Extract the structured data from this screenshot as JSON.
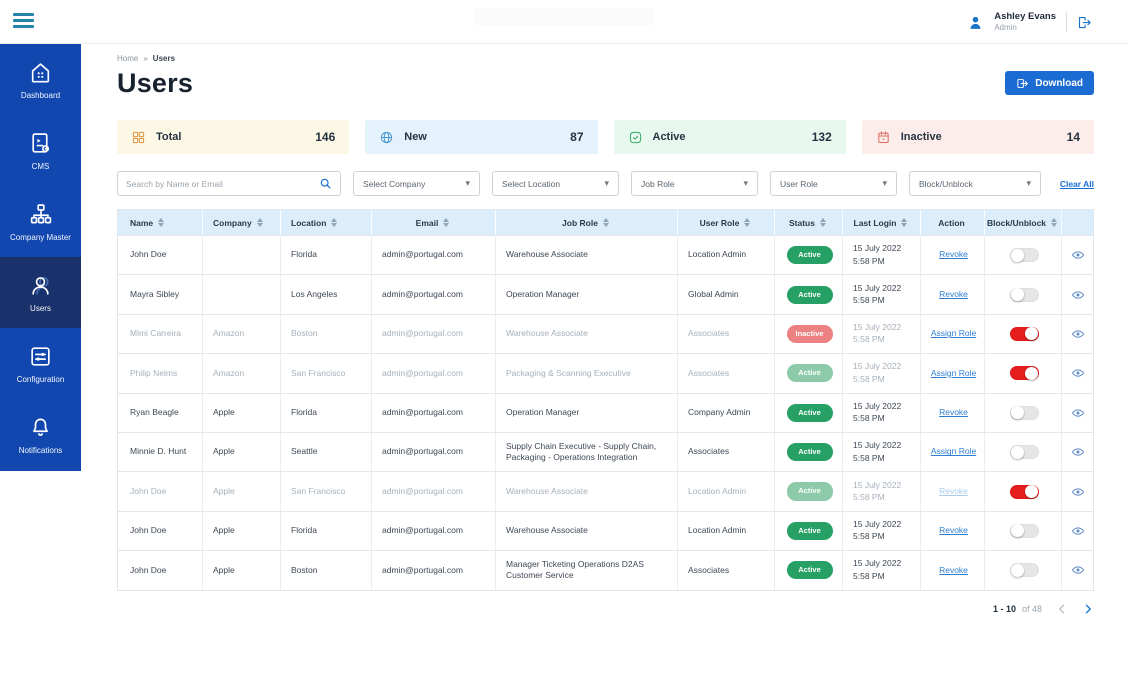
{
  "topbar": {
    "user_name": "Ashley Evans",
    "user_role": "Admin"
  },
  "sidebar": {
    "items": [
      {
        "id": "dashboard",
        "label": "Dashboard",
        "icon": "home-icon",
        "active": false
      },
      {
        "id": "cms",
        "label": "CMS",
        "icon": "cms-icon",
        "active": false
      },
      {
        "id": "company-master",
        "label": "Company Master",
        "icon": "org-chart-icon",
        "active": false
      },
      {
        "id": "users",
        "label": "Users",
        "icon": "user-icon",
        "active": true
      },
      {
        "id": "configuration",
        "label": "Configuration",
        "icon": "sliders-icon",
        "active": false
      },
      {
        "id": "notifications",
        "label": "Notifications",
        "icon": "bell-icon",
        "active": false
      }
    ]
  },
  "breadcrumb": {
    "items": [
      "Home",
      "Users"
    ],
    "separator": "»"
  },
  "page": {
    "title": "Users"
  },
  "toolbar": {
    "download_label": "Download"
  },
  "stats": {
    "cards": [
      {
        "label": "Total",
        "value": "146",
        "icon": "grid-icon",
        "bg": "#fcf8e5",
        "icon_color": "#d9913f"
      },
      {
        "label": "New",
        "value": "87",
        "icon": "globe-icon",
        "bg": "#e4f3fb",
        "icon_color": "#4a97d2"
      },
      {
        "label": "Active",
        "value": "132",
        "icon": "check-square-icon",
        "bg": "#e7f8ee",
        "icon_color": "#35a865"
      },
      {
        "label": "Inactive",
        "value": "14",
        "icon": "calendar-icon",
        "bg": "#fdedea",
        "icon_color": "#d96b60"
      }
    ]
  },
  "filters": {
    "search_placeholder": "Search by Name or Email",
    "selects": [
      {
        "label": "Select Company"
      },
      {
        "label": "Select Location"
      },
      {
        "label": "Job Role"
      },
      {
        "label": "User Role"
      },
      {
        "label": "Block/Unblock"
      }
    ],
    "clear_all_label": "Clear All"
  },
  "table": {
    "columns": [
      {
        "label": "Name",
        "sortable": true
      },
      {
        "label": "Company",
        "sortable": true
      },
      {
        "label": "Location",
        "sortable": true
      },
      {
        "label": "Email",
        "sortable": true
      },
      {
        "label": "Job Role",
        "sortable": true
      },
      {
        "label": "User Role",
        "sortable": true
      },
      {
        "label": "Status",
        "sortable": true
      },
      {
        "label": "Last Login",
        "sortable": true
      },
      {
        "label": "Action",
        "sortable": false
      },
      {
        "label": "Block/Unblock",
        "sortable": true
      },
      {
        "label": "",
        "sortable": false
      }
    ],
    "rows": [
      {
        "name": "John Doe",
        "company": "",
        "location": "Florida",
        "email": "admin@portugal.com",
        "job_role": "Warehouse Associate",
        "user_role": "Location Admin",
        "status": "Active",
        "status_variant": "active",
        "last_login_date": "15 July 2022",
        "last_login_time": "5:58 PM",
        "action": "Revoke",
        "action_faded": false,
        "blocked": false,
        "dimmed": false
      },
      {
        "name": "Mayra Sibley",
        "company": "",
        "location": "Los Angeles",
        "email": "admin@portugal.com",
        "job_role": "Operation Manager",
        "user_role": "Global Admin",
        "status": "Active",
        "status_variant": "active",
        "last_login_date": "15 July 2022",
        "last_login_time": "5:58 PM",
        "action": "Revoke",
        "action_faded": false,
        "blocked": false,
        "dimmed": false
      },
      {
        "name": "Mimi Carreira",
        "company": "Amazon",
        "location": "Boston",
        "email": "admin@portugal.com",
        "job_role": "Warehouse Associate",
        "user_role": "Associates",
        "status": "Inactive",
        "status_variant": "inactive",
        "last_login_date": "15 July 2022",
        "last_login_time": "5:58 PM",
        "action": "Assign Role",
        "action_faded": false,
        "blocked": true,
        "dimmed": true
      },
      {
        "name": "Philip Nelms",
        "company": "Amazon",
        "location": "San Francisco",
        "email": "admin@portugal.com",
        "job_role": "Packaging & Scanning Executive",
        "user_role": "Associates",
        "status": "Active",
        "status_variant": "active-faded",
        "last_login_date": "15 July 2022",
        "last_login_time": "5:58 PM",
        "action": "Assign Role",
        "action_faded": false,
        "blocked": true,
        "dimmed": true
      },
      {
        "name": "Ryan Beagle",
        "company": "Apple",
        "location": "Florida",
        "email": "admin@portugal.com",
        "job_role": "Operation Manager",
        "user_role": "Company Admin",
        "status": "Active",
        "status_variant": "active",
        "last_login_date": "15 July 2022",
        "last_login_time": "5:58 PM",
        "action": "Revoke",
        "action_faded": false,
        "blocked": false,
        "dimmed": false
      },
      {
        "name": "Minnie D. Hunt",
        "company": "Apple",
        "location": "Seattle",
        "email": "admin@portugal.com",
        "job_role": "Supply Chain Executive - Supply Chain, Packaging - Operations Integration",
        "user_role": "Associates",
        "status": "Active",
        "status_variant": "active",
        "last_login_date": "15 July 2022",
        "last_login_time": "5:58 PM",
        "action": "Assign Role",
        "action_faded": false,
        "blocked": false,
        "dimmed": false
      },
      {
        "name": "John Doe",
        "company": "Apple",
        "location": "San Francisco",
        "email": "admin@portugal.com",
        "job_role": "Warehouse Associate",
        "user_role": "Location Admin",
        "status": "Active",
        "status_variant": "active-faded",
        "last_login_date": "15 July 2022",
        "last_login_time": "5:58 PM",
        "action": "Revoke",
        "action_faded": true,
        "blocked": true,
        "dimmed": true
      },
      {
        "name": "John Doe",
        "company": "Apple",
        "location": "Florida",
        "email": "admin@portugal.com",
        "job_role": "Warehouse Associate",
        "user_role": "Location Admin",
        "status": "Active",
        "status_variant": "active",
        "last_login_date": "15 July 2022",
        "last_login_time": "5:58 PM",
        "action": "Revoke",
        "action_faded": false,
        "blocked": false,
        "dimmed": false
      },
      {
        "name": "John Doe",
        "company": "Apple",
        "location": "Boston",
        "email": "admin@portugal.com",
        "job_role": "Manager Ticketing Operations D2AS Customer Service",
        "user_role": "Associates",
        "status": "Active",
        "status_variant": "active",
        "last_login_date": "15 July 2022",
        "last_login_time": "5:58 PM",
        "action": "Revoke",
        "action_faded": false,
        "blocked": false,
        "dimmed": false
      }
    ]
  },
  "pagination": {
    "range": "1 - 10",
    "of_total": "of 48"
  }
}
